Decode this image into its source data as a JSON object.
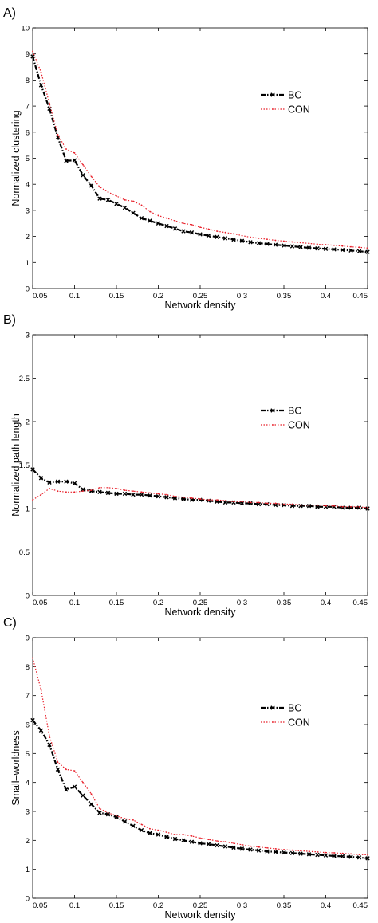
{
  "chart_data": [
    {
      "type": "line",
      "panel_label": "A)",
      "xlabel": "Network density",
      "ylabel": "Normalized clustering",
      "xlim": [
        0.05,
        0.45
      ],
      "ylim": [
        0,
        10
      ],
      "xticks": [
        "0.05",
        "0.1",
        "0.15",
        "0.2",
        "0.25",
        "0.3",
        "0.35",
        "0.4",
        "0.45"
      ],
      "yticks": [
        "0",
        "1",
        "2",
        "3",
        "4",
        "5",
        "6",
        "7",
        "8",
        "9",
        "10"
      ],
      "legend_position": "right",
      "x": [
        0.05,
        0.06,
        0.07,
        0.08,
        0.09,
        0.1,
        0.11,
        0.12,
        0.13,
        0.14,
        0.15,
        0.16,
        0.17,
        0.18,
        0.19,
        0.2,
        0.21,
        0.22,
        0.23,
        0.24,
        0.25,
        0.26,
        0.27,
        0.28,
        0.29,
        0.3,
        0.31,
        0.32,
        0.33,
        0.34,
        0.35,
        0.36,
        0.37,
        0.38,
        0.39,
        0.4,
        0.41,
        0.42,
        0.43,
        0.44,
        0.45
      ],
      "series": [
        {
          "name": "BC",
          "color": "#000000",
          "values": [
            8.9,
            7.8,
            6.9,
            5.8,
            4.9,
            4.92,
            4.35,
            3.95,
            3.45,
            3.4,
            3.25,
            3.1,
            2.9,
            2.7,
            2.6,
            2.5,
            2.4,
            2.3,
            2.2,
            2.15,
            2.08,
            2.03,
            1.98,
            1.93,
            1.88,
            1.83,
            1.78,
            1.74,
            1.71,
            1.68,
            1.65,
            1.62,
            1.59,
            1.56,
            1.54,
            1.52,
            1.5,
            1.48,
            1.46,
            1.43,
            1.4
          ]
        },
        {
          "name": "CON",
          "color": "#e8202a",
          "values": [
            9.1,
            8.3,
            7.1,
            5.9,
            5.35,
            5.2,
            4.75,
            4.3,
            3.9,
            3.7,
            3.55,
            3.4,
            3.35,
            3.2,
            2.95,
            2.8,
            2.7,
            2.6,
            2.5,
            2.45,
            2.35,
            2.28,
            2.2,
            2.15,
            2.1,
            2.03,
            1.97,
            1.93,
            1.89,
            1.85,
            1.82,
            1.79,
            1.76,
            1.73,
            1.7,
            1.68,
            1.66,
            1.63,
            1.6,
            1.58,
            1.55
          ]
        }
      ]
    },
    {
      "type": "line",
      "panel_label": "B)",
      "xlabel": "Network density",
      "ylabel": "Normalized path length",
      "xlim": [
        0.05,
        0.45
      ],
      "ylim": [
        0,
        3
      ],
      "xticks": [
        "0.05",
        "0.1",
        "0.15",
        "0.2",
        "0.25",
        "0.3",
        "0.35",
        "0.4",
        "0.45"
      ],
      "yticks": [
        "0",
        "0.5",
        "1",
        "1.5",
        "2",
        "2.5",
        "3"
      ],
      "legend_position": "right",
      "x": [
        0.05,
        0.06,
        0.07,
        0.08,
        0.09,
        0.1,
        0.11,
        0.12,
        0.13,
        0.14,
        0.15,
        0.16,
        0.17,
        0.18,
        0.19,
        0.2,
        0.21,
        0.22,
        0.23,
        0.24,
        0.25,
        0.26,
        0.27,
        0.28,
        0.29,
        0.3,
        0.31,
        0.32,
        0.33,
        0.34,
        0.35,
        0.36,
        0.37,
        0.38,
        0.39,
        0.4,
        0.41,
        0.42,
        0.43,
        0.44,
        0.45
      ],
      "series": [
        {
          "name": "BC",
          "color": "#000000",
          "values": [
            1.45,
            1.35,
            1.3,
            1.31,
            1.31,
            1.29,
            1.22,
            1.2,
            1.19,
            1.18,
            1.17,
            1.17,
            1.16,
            1.16,
            1.15,
            1.14,
            1.13,
            1.12,
            1.11,
            1.1,
            1.1,
            1.09,
            1.08,
            1.07,
            1.07,
            1.06,
            1.06,
            1.05,
            1.05,
            1.04,
            1.04,
            1.03,
            1.03,
            1.03,
            1.02,
            1.02,
            1.02,
            1.01,
            1.01,
            1.01,
            1.0
          ]
        },
        {
          "name": "CON",
          "color": "#e8202a",
          "values": [
            1.1,
            1.16,
            1.23,
            1.2,
            1.19,
            1.19,
            1.2,
            1.21,
            1.24,
            1.24,
            1.23,
            1.21,
            1.2,
            1.19,
            1.18,
            1.17,
            1.16,
            1.14,
            1.13,
            1.12,
            1.11,
            1.1,
            1.1,
            1.09,
            1.08,
            1.08,
            1.07,
            1.07,
            1.06,
            1.06,
            1.05,
            1.05,
            1.04,
            1.04,
            1.04,
            1.03,
            1.03,
            1.02,
            1.02,
            1.02,
            1.01
          ]
        }
      ]
    },
    {
      "type": "line",
      "panel_label": "C)",
      "xlabel": "Network density",
      "ylabel": "Small–worldness",
      "xlim": [
        0.05,
        0.45
      ],
      "ylim": [
        0,
        9
      ],
      "xticks": [
        "0.05",
        "0.1",
        "0.15",
        "0.2",
        "0.25",
        "0.3",
        "0.35",
        "0.4",
        "0.45"
      ],
      "yticks": [
        "0",
        "1",
        "2",
        "3",
        "4",
        "5",
        "6",
        "7",
        "8",
        "9"
      ],
      "legend_position": "right",
      "x": [
        0.05,
        0.06,
        0.07,
        0.08,
        0.09,
        0.1,
        0.11,
        0.12,
        0.13,
        0.14,
        0.15,
        0.16,
        0.17,
        0.18,
        0.19,
        0.2,
        0.21,
        0.22,
        0.23,
        0.24,
        0.25,
        0.26,
        0.27,
        0.28,
        0.29,
        0.3,
        0.31,
        0.32,
        0.33,
        0.34,
        0.35,
        0.36,
        0.37,
        0.38,
        0.39,
        0.4,
        0.41,
        0.42,
        0.43,
        0.44,
        0.45
      ],
      "series": [
        {
          "name": "BC",
          "color": "#000000",
          "values": [
            6.15,
            5.8,
            5.3,
            4.45,
            3.75,
            3.85,
            3.55,
            3.25,
            2.95,
            2.9,
            2.8,
            2.65,
            2.5,
            2.35,
            2.25,
            2.2,
            2.12,
            2.05,
            2.0,
            1.95,
            1.9,
            1.87,
            1.83,
            1.79,
            1.75,
            1.71,
            1.68,
            1.65,
            1.62,
            1.6,
            1.58,
            1.56,
            1.54,
            1.52,
            1.5,
            1.48,
            1.46,
            1.45,
            1.43,
            1.41,
            1.38
          ]
        },
        {
          "name": "CON",
          "color": "#e8202a",
          "values": [
            8.3,
            7.2,
            5.6,
            4.7,
            4.45,
            4.4,
            4.0,
            3.6,
            3.1,
            2.95,
            2.85,
            2.75,
            2.7,
            2.55,
            2.4,
            2.35,
            2.28,
            2.2,
            2.2,
            2.15,
            2.08,
            2.03,
            1.98,
            1.95,
            1.9,
            1.85,
            1.8,
            1.77,
            1.74,
            1.71,
            1.68,
            1.66,
            1.64,
            1.62,
            1.6,
            1.58,
            1.57,
            1.55,
            1.53,
            1.51,
            1.5
          ]
        }
      ]
    }
  ]
}
